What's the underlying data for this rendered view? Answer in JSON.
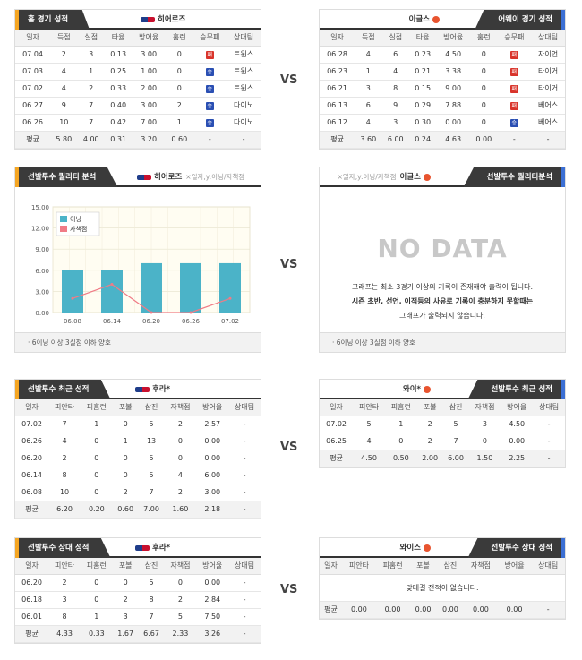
{
  "vs": "VS",
  "home": {
    "tab": "홈 경기 성적",
    "team": "히어로즈",
    "headers": [
      "일자",
      "득점",
      "실점",
      "타율",
      "방어율",
      "홈런",
      "승무패",
      "상대팀"
    ],
    "rows": [
      [
        "07.04",
        "2",
        "3",
        "0.13",
        "3.00",
        "0",
        "L",
        "트윈스"
      ],
      [
        "07.03",
        "4",
        "1",
        "0.25",
        "1.00",
        "0",
        "W",
        "트윈스"
      ],
      [
        "07.02",
        "4",
        "2",
        "0.33",
        "2.00",
        "0",
        "W",
        "트윈스"
      ],
      [
        "06.27",
        "9",
        "7",
        "0.40",
        "3.00",
        "2",
        "W",
        "다이노"
      ],
      [
        "06.26",
        "10",
        "7",
        "0.42",
        "7.00",
        "1",
        "W",
        "다이노"
      ]
    ],
    "avg": [
      "평균",
      "5.80",
      "4.00",
      "0.31",
      "3.20",
      "0.60",
      "-",
      "-"
    ]
  },
  "away": {
    "tab": "어웨이 경기 성적",
    "team": "이글스",
    "headers": [
      "일자",
      "득점",
      "실점",
      "타율",
      "방어율",
      "홈런",
      "승무패",
      "상대팀"
    ],
    "rows": [
      [
        "06.28",
        "4",
        "6",
        "0.23",
        "4.50",
        "0",
        "L",
        "자이언"
      ],
      [
        "06.23",
        "1",
        "4",
        "0.21",
        "3.38",
        "0",
        "L",
        "타이거"
      ],
      [
        "06.21",
        "3",
        "8",
        "0.15",
        "9.00",
        "0",
        "L",
        "타이거"
      ],
      [
        "06.13",
        "6",
        "9",
        "0.29",
        "7.88",
        "0",
        "L",
        "베어스"
      ],
      [
        "06.12",
        "4",
        "3",
        "0.30",
        "0.00",
        "0",
        "W",
        "베어스"
      ]
    ],
    "avg": [
      "평균",
      "3.60",
      "6.00",
      "0.24",
      "4.63",
      "0.00",
      "-",
      "-"
    ]
  },
  "quality_left": {
    "tab": "선발투수 퀄리티 분석",
    "team": "히어로즈",
    "sub": "×일자,y:이닝/자책점",
    "note": "6이닝 이상 3실점 이하 양호"
  },
  "quality_right": {
    "tab": "선발투수 퀄리티분석",
    "team": "이글스",
    "sub": "×일자,y:이닝/자책점",
    "nodata": "NO DATA",
    "msg1": "그래프는 최소 3경기 이상의 기록이 존재해야 출력이 됩니다.",
    "msg2": "시즌 초반, 선언, 이적등의 사유로 기록이 충분하지 못할때는",
    "msg3": "그래프가 출력되지 않습니다.",
    "note": "6이닝 이상 3실점 이하 양호"
  },
  "chart_data": {
    "type": "bar",
    "categories": [
      "06.08",
      "06.14",
      "06.20",
      "06.26",
      "07.02"
    ],
    "series": [
      {
        "name": "이닝",
        "type": "bar",
        "values": [
          6.0,
          6.0,
          7.0,
          7.0,
          7.0
        ]
      },
      {
        "name": "자책점",
        "type": "line",
        "values": [
          2,
          4,
          0,
          0,
          2
        ]
      }
    ],
    "yticks": [
      "15.00",
      "12.00",
      "9.00",
      "6.00",
      "3.00",
      "0.00"
    ],
    "ylim": [
      0,
      15
    ],
    "legend": "top-left",
    "colors": {
      "bar": "#4bb3c8",
      "line": "#f07b86"
    }
  },
  "recent_left": {
    "tab": "선발투수 최근 성적",
    "team": "후라*",
    "headers": [
      "일자",
      "피안타",
      "피홈런",
      "포볼",
      "삼진",
      "자책점",
      "방어율",
      "상대팀"
    ],
    "rows": [
      [
        "07.02",
        "7",
        "1",
        "0",
        "5",
        "2",
        "2.57",
        "-"
      ],
      [
        "06.26",
        "4",
        "0",
        "1",
        "13",
        "0",
        "0.00",
        "-"
      ],
      [
        "06.20",
        "2",
        "0",
        "0",
        "5",
        "0",
        "0.00",
        "-"
      ],
      [
        "06.14",
        "8",
        "0",
        "0",
        "5",
        "4",
        "6.00",
        "-"
      ],
      [
        "06.08",
        "10",
        "0",
        "2",
        "7",
        "2",
        "3.00",
        "-"
      ]
    ],
    "avg": [
      "평균",
      "6.20",
      "0.20",
      "0.60",
      "7.00",
      "1.60",
      "2.18",
      "-"
    ]
  },
  "recent_right": {
    "tab": "선발투수 최근 성적",
    "team": "와이*",
    "headers": [
      "일자",
      "피안타",
      "피홈런",
      "포볼",
      "삼진",
      "자책점",
      "방어율",
      "상대팀"
    ],
    "rows": [
      [
        "07.02",
        "5",
        "1",
        "2",
        "5",
        "3",
        "4.50",
        "-"
      ],
      [
        "06.25",
        "4",
        "0",
        "2",
        "7",
        "0",
        "0.00",
        "-"
      ]
    ],
    "avg": [
      "평균",
      "4.50",
      "0.50",
      "2.00",
      "6.00",
      "1.50",
      "2.25",
      "-"
    ]
  },
  "vs_left": {
    "tab": "선발투수 상대 성적",
    "team": "후라*",
    "headers": [
      "일자",
      "피안타",
      "피홈런",
      "포볼",
      "삼진",
      "자책점",
      "방어율",
      "상대팀"
    ],
    "rows": [
      [
        "06.20",
        "2",
        "0",
        "0",
        "5",
        "0",
        "0.00",
        "-"
      ],
      [
        "06.18",
        "3",
        "0",
        "2",
        "8",
        "2",
        "2.84",
        "-"
      ],
      [
        "06.01",
        "8",
        "1",
        "3",
        "7",
        "5",
        "7.50",
        "-"
      ]
    ],
    "avg": [
      "평균",
      "4.33",
      "0.33",
      "1.67",
      "6.67",
      "2.33",
      "3.26",
      "-"
    ]
  },
  "vs_right": {
    "tab": "선발투수 상대 성적",
    "team": "와이스",
    "headers": [
      "일자",
      "피안타",
      "피홈런",
      "포볼",
      "삼진",
      "자책점",
      "방어율",
      "상대팀"
    ],
    "empty": "맞대결 전적이 없습니다.",
    "avg": [
      "평균",
      "0.00",
      "0.00",
      "0.00",
      "0.00",
      "0.00",
      "0.00",
      "-"
    ]
  }
}
